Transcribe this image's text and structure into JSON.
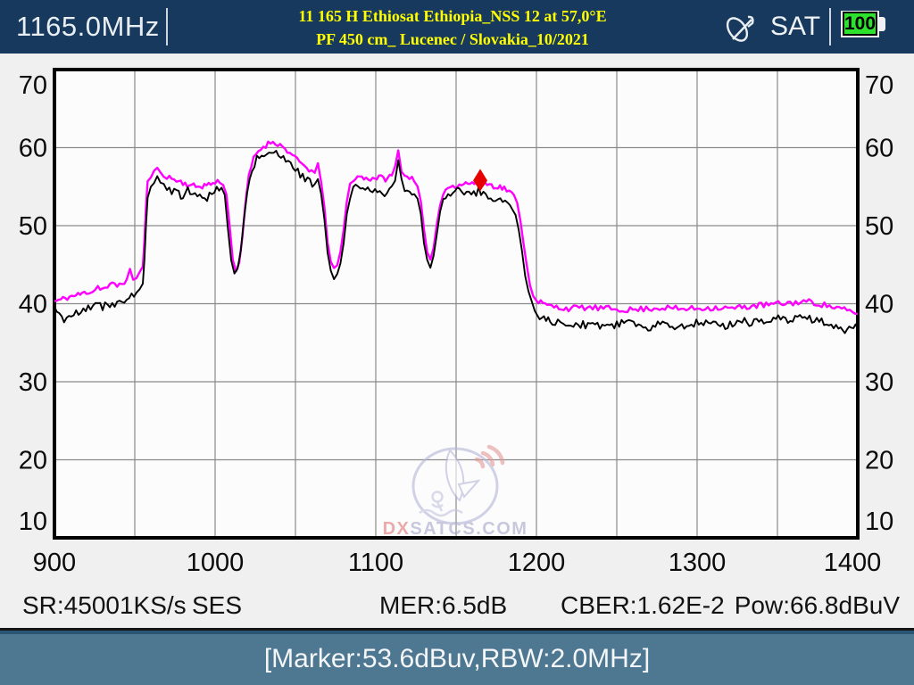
{
  "header": {
    "frequency": "1165.0MHz",
    "title_line1": "11 165 H Ethiosat Ethiopia_NSS 12 at 57,0°E",
    "title_line2": "PF 450 cm_ Lucenec / Slovakia_10/2021",
    "mode_label": "SAT",
    "battery_level": "100"
  },
  "status": {
    "sr": "SR:45001KS/s",
    "provider": "SES",
    "mer": "MER:6.5dB",
    "cber": "CBER:1.62E-2",
    "pow": "Pow:66.8dBuV"
  },
  "marker_bar": {
    "text": "[Marker:53.6dBuv,RBW:2.0MHz]"
  },
  "watermark": {
    "dx": "DX",
    "rest": "SATCS.COM"
  },
  "colors": {
    "header_bg": "#17395e",
    "title_yellow": "#ffff00",
    "battery_green": "#2ce22c",
    "marker_bar_bg": "#4e7792",
    "trace_maxhold": "#ff00ff",
    "trace_live": "#000000",
    "marker_red": "#e60000",
    "grid": "#8a8a8a",
    "plot_bg": "#fcfcfc",
    "screen_bg": "#f0f0f0"
  },
  "chart_data": {
    "type": "line",
    "title": "Satellite IF spectrum",
    "xlabel": "",
    "ylabel": "",
    "x_range": [
      900,
      1400
    ],
    "y_range": [
      10,
      70
    ],
    "x_ticks": [
      900,
      1000,
      1100,
      1200,
      1300,
      1400
    ],
    "y_ticks": [
      70,
      60,
      50,
      40,
      30,
      20,
      10
    ],
    "x_grid_step_mhz": 50,
    "y_grid_step_db": 10,
    "grid": true,
    "legend": "none",
    "marker": {
      "freq_mhz": 1165,
      "level_dbuv": 53.6,
      "color": "#e60000"
    },
    "noise_jitter": {
      "seed": 11,
      "step_mhz": 1.6,
      "amps": [
        0.38,
        0.55
      ]
    },
    "series": [
      {
        "name": "max-hold",
        "color": "#ff00ff",
        "width": 2.4,
        "points": [
          [
            900,
            40.3
          ],
          [
            904,
            40.5
          ],
          [
            908,
            40.8
          ],
          [
            912,
            41.0
          ],
          [
            916,
            41.2
          ],
          [
            920,
            41.5
          ],
          [
            924,
            41.6
          ],
          [
            927,
            42.2
          ],
          [
            930,
            41.9
          ],
          [
            933,
            42.1
          ],
          [
            936,
            42.5
          ],
          [
            939,
            42.3
          ],
          [
            942,
            42.7
          ],
          [
            945,
            43.0
          ],
          [
            947,
            44.2
          ],
          [
            949,
            43.2
          ],
          [
            951,
            43.5
          ],
          [
            953,
            43.9
          ],
          [
            955,
            44.8
          ],
          [
            956,
            48.0
          ],
          [
            957,
            52.5
          ],
          [
            958,
            55.5
          ],
          [
            960,
            56.4
          ],
          [
            962,
            56.8
          ],
          [
            964,
            57.2
          ],
          [
            966,
            56.9
          ],
          [
            968,
            56.6
          ],
          [
            970,
            56.3
          ],
          [
            973,
            56.0
          ],
          [
            976,
            55.8
          ],
          [
            980,
            55.5
          ],
          [
            984,
            55.2
          ],
          [
            988,
            55.0
          ],
          [
            992,
            55.1
          ],
          [
            996,
            55.3
          ],
          [
            1000,
            55.5
          ],
          [
            1003,
            55.7
          ],
          [
            1005,
            55.4
          ],
          [
            1007,
            54.0
          ],
          [
            1009,
            50.0
          ],
          [
            1011,
            45.8
          ],
          [
            1013,
            44.2
          ],
          [
            1015,
            45.3
          ],
          [
            1017,
            48.5
          ],
          [
            1019,
            53.0
          ],
          [
            1021,
            56.5
          ],
          [
            1024,
            58.6
          ],
          [
            1027,
            59.6
          ],
          [
            1030,
            60.1
          ],
          [
            1033,
            60.5
          ],
          [
            1036,
            60.8
          ],
          [
            1039,
            60.5
          ],
          [
            1042,
            60.1
          ],
          [
            1045,
            59.6
          ],
          [
            1048,
            59.0
          ],
          [
            1051,
            58.4
          ],
          [
            1054,
            57.9
          ],
          [
            1057,
            57.4
          ],
          [
            1060,
            57.0
          ],
          [
            1062,
            56.7
          ],
          [
            1064,
            57.8
          ],
          [
            1066,
            55.5
          ],
          [
            1068,
            52.5
          ],
          [
            1070,
            48.0
          ],
          [
            1072,
            45.3
          ],
          [
            1074,
            44.3
          ],
          [
            1076,
            45.0
          ],
          [
            1078,
            46.5
          ],
          [
            1080,
            49.5
          ],
          [
            1082,
            53.0
          ],
          [
            1084,
            55.3
          ],
          [
            1086,
            56.0
          ],
          [
            1090,
            56.3
          ],
          [
            1094,
            56.0
          ],
          [
            1098,
            56.1
          ],
          [
            1102,
            56.2
          ],
          [
            1106,
            56.0
          ],
          [
            1110,
            56.4
          ],
          [
            1112,
            57.5
          ],
          [
            1114,
            59.6
          ],
          [
            1116,
            57.2
          ],
          [
            1118,
            56.4
          ],
          [
            1121,
            56.2
          ],
          [
            1124,
            55.9
          ],
          [
            1126,
            55.2
          ],
          [
            1128,
            53.0
          ],
          [
            1130,
            49.5
          ],
          [
            1132,
            46.5
          ],
          [
            1134,
            45.5
          ],
          [
            1136,
            47.0
          ],
          [
            1138,
            50.0
          ],
          [
            1140,
            52.8
          ],
          [
            1142,
            54.2
          ],
          [
            1145,
            54.9
          ],
          [
            1148,
            55.1
          ],
          [
            1152,
            55.3
          ],
          [
            1156,
            55.4
          ],
          [
            1160,
            55.5
          ],
          [
            1164,
            55.3
          ],
          [
            1168,
            55.4
          ],
          [
            1172,
            55.2
          ],
          [
            1176,
            55.0
          ],
          [
            1180,
            54.8
          ],
          [
            1183,
            54.4
          ],
          [
            1186,
            53.8
          ],
          [
            1188,
            52.8
          ],
          [
            1190,
            50.8
          ],
          [
            1192,
            47.8
          ],
          [
            1194,
            44.8
          ],
          [
            1196,
            42.5
          ],
          [
            1198,
            41.2
          ],
          [
            1200,
            40.5
          ],
          [
            1204,
            40.0
          ],
          [
            1208,
            39.7
          ],
          [
            1214,
            39.5
          ],
          [
            1220,
            39.4
          ],
          [
            1230,
            39.5
          ],
          [
            1240,
            39.4
          ],
          [
            1250,
            39.3
          ],
          [
            1260,
            39.2
          ],
          [
            1270,
            39.4
          ],
          [
            1280,
            39.5
          ],
          [
            1290,
            39.3
          ],
          [
            1300,
            39.4
          ],
          [
            1310,
            39.5
          ],
          [
            1322,
            39.4
          ],
          [
            1334,
            39.7
          ],
          [
            1346,
            39.9
          ],
          [
            1358,
            40.1
          ],
          [
            1368,
            40.3
          ],
          [
            1376,
            40.0
          ],
          [
            1384,
            39.6
          ],
          [
            1390,
            39.3
          ],
          [
            1395,
            39.0
          ],
          [
            1400,
            38.7
          ]
        ]
      },
      {
        "name": "live",
        "color": "#000000",
        "width": 1.9,
        "points": [
          [
            900,
            39.2
          ],
          [
            903,
            38.4
          ],
          [
            906,
            37.8
          ],
          [
            909,
            38.7
          ],
          [
            912,
            39.0
          ],
          [
            915,
            38.6
          ],
          [
            918,
            39.2
          ],
          [
            921,
            39.5
          ],
          [
            924,
            39.3
          ],
          [
            927,
            40.0
          ],
          [
            930,
            39.6
          ],
          [
            933,
            39.9
          ],
          [
            936,
            40.2
          ],
          [
            939,
            39.9
          ],
          [
            942,
            40.4
          ],
          [
            945,
            40.7
          ],
          [
            948,
            40.9
          ],
          [
            951,
            41.2
          ],
          [
            953,
            41.6
          ],
          [
            955,
            42.5
          ],
          [
            956,
            45.5
          ],
          [
            957,
            50.0
          ],
          [
            958,
            53.5
          ],
          [
            960,
            55.2
          ],
          [
            962,
            55.6
          ],
          [
            964,
            56.0
          ],
          [
            966,
            55.5
          ],
          [
            968,
            55.1
          ],
          [
            970,
            54.8
          ],
          [
            973,
            54.4
          ],
          [
            976,
            54.1
          ],
          [
            980,
            53.8
          ],
          [
            983,
            54.5
          ],
          [
            986,
            54.0
          ],
          [
            989,
            53.6
          ],
          [
            992,
            53.8
          ],
          [
            995,
            53.5
          ],
          [
            998,
            54.1
          ],
          [
            1001,
            54.5
          ],
          [
            1004,
            54.8
          ],
          [
            1006,
            53.8
          ],
          [
            1008,
            49.5
          ],
          [
            1010,
            45.5
          ],
          [
            1012,
            43.6
          ],
          [
            1014,
            44.4
          ],
          [
            1016,
            46.8
          ],
          [
            1018,
            51.0
          ],
          [
            1020,
            54.5
          ],
          [
            1023,
            57.2
          ],
          [
            1026,
            58.5
          ],
          [
            1029,
            59.0
          ],
          [
            1032,
            59.4
          ],
          [
            1035,
            59.8
          ],
          [
            1038,
            59.4
          ],
          [
            1041,
            59.0
          ],
          [
            1044,
            58.4
          ],
          [
            1047,
            57.8
          ],
          [
            1050,
            57.1
          ],
          [
            1053,
            56.6
          ],
          [
            1056,
            56.1
          ],
          [
            1059,
            55.6
          ],
          [
            1062,
            55.3
          ],
          [
            1064,
            56.2
          ],
          [
            1066,
            53.8
          ],
          [
            1068,
            50.8
          ],
          [
            1070,
            46.5
          ],
          [
            1072,
            44.3
          ],
          [
            1074,
            43.4
          ],
          [
            1076,
            44.0
          ],
          [
            1078,
            45.3
          ],
          [
            1080,
            47.8
          ],
          [
            1082,
            51.3
          ],
          [
            1084,
            53.8
          ],
          [
            1086,
            54.7
          ],
          [
            1089,
            54.9
          ],
          [
            1092,
            54.4
          ],
          [
            1095,
            54.7
          ],
          [
            1098,
            54.3
          ],
          [
            1101,
            54.6
          ],
          [
            1104,
            54.1
          ],
          [
            1107,
            54.4
          ],
          [
            1110,
            54.9
          ],
          [
            1112,
            56.0
          ],
          [
            1114,
            58.2
          ],
          [
            1116,
            55.6
          ],
          [
            1118,
            54.9
          ],
          [
            1121,
            54.6
          ],
          [
            1124,
            54.3
          ],
          [
            1126,
            53.7
          ],
          [
            1128,
            51.5
          ],
          [
            1130,
            47.8
          ],
          [
            1132,
            45.3
          ],
          [
            1134,
            44.7
          ],
          [
            1136,
            46.0
          ],
          [
            1138,
            48.8
          ],
          [
            1140,
            51.8
          ],
          [
            1142,
            53.2
          ],
          [
            1145,
            53.9
          ],
          [
            1148,
            54.2
          ],
          [
            1152,
            54.4
          ],
          [
            1155,
            54.0
          ],
          [
            1158,
            54.4
          ],
          [
            1161,
            54.1
          ],
          [
            1164,
            54.5
          ],
          [
            1167,
            53.9
          ],
          [
            1170,
            53.7
          ],
          [
            1173,
            53.5
          ],
          [
            1176,
            53.3
          ],
          [
            1179,
            53.1
          ],
          [
            1182,
            52.9
          ],
          [
            1185,
            52.4
          ],
          [
            1187,
            51.6
          ],
          [
            1189,
            49.6
          ],
          [
            1191,
            46.6
          ],
          [
            1193,
            43.8
          ],
          [
            1195,
            41.5
          ],
          [
            1197,
            40.0
          ],
          [
            1199,
            39.0
          ],
          [
            1202,
            38.4
          ],
          [
            1206,
            38.0
          ],
          [
            1210,
            37.7
          ],
          [
            1215,
            37.4
          ],
          [
            1220,
            37.2
          ],
          [
            1226,
            37.5
          ],
          [
            1232,
            37.1
          ],
          [
            1238,
            37.4
          ],
          [
            1244,
            37.0
          ],
          [
            1250,
            37.3
          ],
          [
            1256,
            37.6
          ],
          [
            1262,
            37.2
          ],
          [
            1268,
            36.9
          ],
          [
            1274,
            37.3
          ],
          [
            1280,
            37.6
          ],
          [
            1286,
            37.2
          ],
          [
            1292,
            37.0
          ],
          [
            1298,
            37.4
          ],
          [
            1304,
            37.7
          ],
          [
            1310,
            37.3
          ],
          [
            1316,
            37.1
          ],
          [
            1322,
            37.5
          ],
          [
            1328,
            37.8
          ],
          [
            1334,
            37.6
          ],
          [
            1340,
            38.0
          ],
          [
            1346,
            37.8
          ],
          [
            1352,
            38.2
          ],
          [
            1358,
            37.9
          ],
          [
            1364,
            38.3
          ],
          [
            1370,
            38.1
          ],
          [
            1376,
            37.8
          ],
          [
            1382,
            37.5
          ],
          [
            1388,
            37.0
          ],
          [
            1392,
            36.7
          ],
          [
            1396,
            37.2
          ],
          [
            1400,
            36.8
          ]
        ]
      }
    ]
  }
}
